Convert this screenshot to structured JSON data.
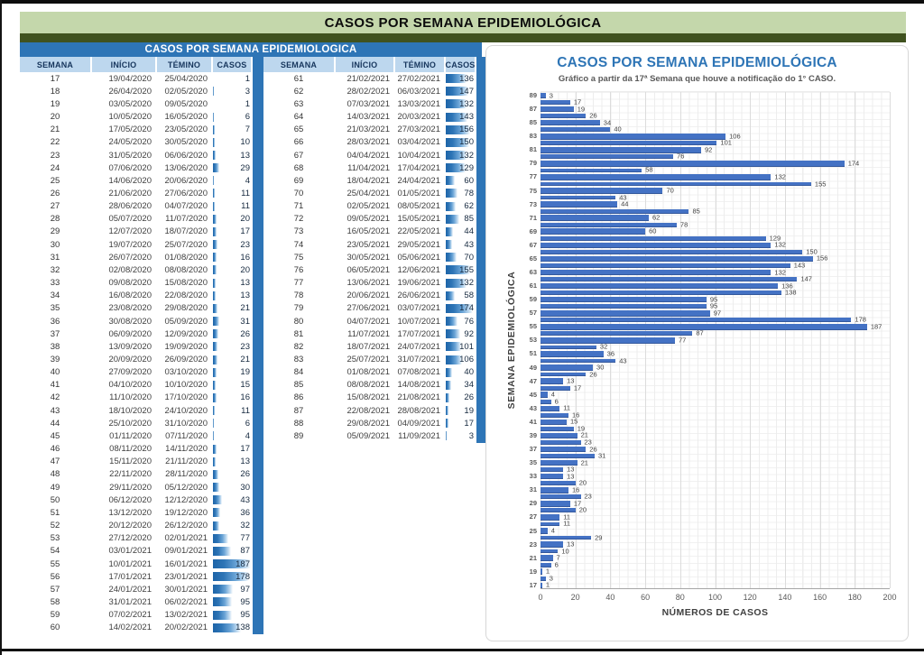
{
  "page": {
    "banner_title": "CASOS POR SEMANA EPIDEMIOLÓGICA"
  },
  "table_section": {
    "title": "CASOS POR SEMANA EPIDEMIOLOGICA",
    "columns": [
      "SEMANA",
      "INÍCIO",
      "TÉMINO",
      "CASOS"
    ],
    "databar_max": 187,
    "tables": [
      {
        "rows": [
          [
            17,
            "19/04/2020",
            "25/04/2020",
            1
          ],
          [
            18,
            "26/04/2020",
            "02/05/2020",
            3
          ],
          [
            19,
            "03/05/2020",
            "09/05/2020",
            1
          ],
          [
            20,
            "10/05/2020",
            "16/05/2020",
            6
          ],
          [
            21,
            "17/05/2020",
            "23/05/2020",
            7
          ],
          [
            22,
            "24/05/2020",
            "30/05/2020",
            10
          ],
          [
            23,
            "31/05/2020",
            "06/06/2020",
            13
          ],
          [
            24,
            "07/06/2020",
            "13/06/2020",
            29
          ],
          [
            25,
            "14/06/2020",
            "20/06/2020",
            4
          ],
          [
            26,
            "21/06/2020",
            "27/06/2020",
            11
          ],
          [
            27,
            "28/06/2020",
            "04/07/2020",
            11
          ],
          [
            28,
            "05/07/2020",
            "11/07/2020",
            20
          ],
          [
            29,
            "12/07/2020",
            "18/07/2020",
            17
          ],
          [
            30,
            "19/07/2020",
            "25/07/2020",
            23
          ],
          [
            31,
            "26/07/2020",
            "01/08/2020",
            16
          ],
          [
            32,
            "02/08/2020",
            "08/08/2020",
            20
          ],
          [
            33,
            "09/08/2020",
            "15/08/2020",
            13
          ],
          [
            34,
            "16/08/2020",
            "22/08/2020",
            13
          ],
          [
            35,
            "23/08/2020",
            "29/08/2020",
            21
          ],
          [
            36,
            "30/08/2020",
            "05/09/2020",
            31
          ],
          [
            37,
            "06/09/2020",
            "12/09/2020",
            26
          ],
          [
            38,
            "13/09/2020",
            "19/09/2020",
            23
          ],
          [
            39,
            "20/09/2020",
            "26/09/2020",
            21
          ],
          [
            40,
            "27/09/2020",
            "03/10/2020",
            19
          ],
          [
            41,
            "04/10/2020",
            "10/10/2020",
            15
          ],
          [
            42,
            "11/10/2020",
            "17/10/2020",
            16
          ],
          [
            43,
            "18/10/2020",
            "24/10/2020",
            11
          ],
          [
            44,
            "25/10/2020",
            "31/10/2020",
            6
          ],
          [
            45,
            "01/11/2020",
            "07/11/2020",
            4
          ],
          [
            46,
            "08/11/2020",
            "14/11/2020",
            17
          ],
          [
            47,
            "15/11/2020",
            "21/11/2020",
            13
          ],
          [
            48,
            "22/11/2020",
            "28/11/2020",
            26
          ],
          [
            49,
            "29/11/2020",
            "05/12/2020",
            30
          ],
          [
            50,
            "06/12/2020",
            "12/12/2020",
            43
          ],
          [
            51,
            "13/12/2020",
            "19/12/2020",
            36
          ],
          [
            52,
            "20/12/2020",
            "26/12/2020",
            32
          ],
          [
            53,
            "27/12/2020",
            "02/01/2021",
            77
          ],
          [
            54,
            "03/01/2021",
            "09/01/2021",
            87
          ],
          [
            55,
            "10/01/2021",
            "16/01/2021",
            187
          ],
          [
            56,
            "17/01/2021",
            "23/01/2021",
            178
          ],
          [
            57,
            "24/01/2021",
            "30/01/2021",
            97
          ],
          [
            58,
            "31/01/2021",
            "06/02/2021",
            95
          ],
          [
            59,
            "07/02/2021",
            "13/02/2021",
            95
          ],
          [
            60,
            "14/02/2021",
            "20/02/2021",
            138
          ]
        ]
      },
      {
        "rows": [
          [
            61,
            "21/02/2021",
            "27/02/2021",
            136
          ],
          [
            62,
            "28/02/2021",
            "06/03/2021",
            147
          ],
          [
            63,
            "07/03/2021",
            "13/03/2021",
            132
          ],
          [
            64,
            "14/03/2021",
            "20/03/2021",
            143
          ],
          [
            65,
            "21/03/2021",
            "27/03/2021",
            156
          ],
          [
            66,
            "28/03/2021",
            "03/04/2021",
            150
          ],
          [
            67,
            "04/04/2021",
            "10/04/2021",
            132
          ],
          [
            68,
            "11/04/2021",
            "17/04/2021",
            129
          ],
          [
            69,
            "18/04/2021",
            "24/04/2021",
            60
          ],
          [
            70,
            "25/04/2021",
            "01/05/2021",
            78
          ],
          [
            71,
            "02/05/2021",
            "08/05/2021",
            62
          ],
          [
            72,
            "09/05/2021",
            "15/05/2021",
            85
          ],
          [
            73,
            "16/05/2021",
            "22/05/2021",
            44
          ],
          [
            74,
            "23/05/2021",
            "29/05/2021",
            43
          ],
          [
            75,
            "30/05/2021",
            "05/06/2021",
            70
          ],
          [
            76,
            "06/05/2021",
            "12/06/2021",
            155
          ],
          [
            77,
            "13/06/2021",
            "19/06/2021",
            132
          ],
          [
            78,
            "20/06/2021",
            "26/06/2021",
            58
          ],
          [
            79,
            "27/06/2021",
            "03/07/2021",
            174
          ],
          [
            80,
            "04/07/2021",
            "10/07/2021",
            76
          ],
          [
            81,
            "11/07/2021",
            "17/07/2021",
            92
          ],
          [
            82,
            "18/07/2021",
            "24/07/2021",
            101
          ],
          [
            83,
            "25/07/2021",
            "31/07/2021",
            106
          ],
          [
            84,
            "01/08/2021",
            "07/08/2021",
            40
          ],
          [
            85,
            "08/08/2021",
            "14/08/2021",
            34
          ],
          [
            86,
            "15/08/2021",
            "21/08/2021",
            26
          ],
          [
            87,
            "22/08/2021",
            "28/08/2021",
            19
          ],
          [
            88,
            "29/08/2021",
            "04/09/2021",
            17
          ],
          [
            89,
            "05/09/2021",
            "11/09/2021",
            3
          ]
        ]
      }
    ]
  },
  "chart": {
    "title": "CASOS POR SEMANA EPIDEMIOLÓGICA",
    "subtitle": "Gráfico a partir da 17ª Semana que houve a notificação do 1° CASO.",
    "xlabel": "NÚMEROS DE CASOS",
    "ylabel": "SEMANA EPIDEMIOLÓGICA"
  },
  "chart_data": {
    "type": "bar",
    "orientation": "horizontal",
    "title": "CASOS POR SEMANA EPIDEMIOLÓGICA",
    "subtitle": "Gráfico a partir da 17ª Semana que houve a notificação do 1° CASO.",
    "xlabel": "NÚMEROS DE CASOS",
    "ylabel": "SEMANA EPIDEMIOLÓGICA",
    "xlim": [
      0,
      200
    ],
    "xticks": [
      0,
      20,
      40,
      60,
      80,
      100,
      120,
      140,
      160,
      180,
      200
    ],
    "grid": true,
    "legend": false,
    "yticks_shown": "odd weeks only, 89 at top to 17 at bottom",
    "data_labels": true,
    "categories": [
      89,
      88,
      87,
      86,
      85,
      84,
      83,
      82,
      81,
      80,
      79,
      78,
      77,
      76,
      75,
      74,
      73,
      72,
      71,
      70,
      69,
      68,
      67,
      66,
      65,
      64,
      63,
      62,
      61,
      60,
      59,
      58,
      57,
      56,
      55,
      54,
      53,
      52,
      51,
      50,
      49,
      48,
      47,
      46,
      45,
      44,
      43,
      42,
      41,
      40,
      39,
      38,
      37,
      36,
      35,
      34,
      33,
      32,
      31,
      30,
      29,
      28,
      27,
      26,
      25,
      24,
      23,
      22,
      21,
      20,
      19,
      18,
      17
    ],
    "values": [
      3,
      17,
      19,
      26,
      34,
      40,
      106,
      101,
      92,
      76,
      174,
      58,
      132,
      155,
      70,
      43,
      44,
      85,
      62,
      78,
      60,
      129,
      132,
      150,
      156,
      143,
      132,
      147,
      136,
      138,
      95,
      95,
      97,
      178,
      187,
      87,
      77,
      32,
      36,
      43,
      30,
      26,
      13,
      17,
      4,
      6,
      11,
      16,
      15,
      19,
      21,
      23,
      26,
      31,
      21,
      13,
      13,
      20,
      16,
      23,
      17,
      20,
      11,
      11,
      4,
      29,
      13,
      10,
      7,
      6,
      1,
      3,
      1
    ]
  },
  "colors": {
    "banner_green": "#c4d7ab",
    "stripe_dark_green": "#40521f",
    "table_title_blue": "#2e75b6",
    "header_cell_blue": "#bdd7ee",
    "databar_blue": "#2e75b6",
    "chart_bar_blue": "#4472c4",
    "chart_title_blue": "#2e75b6",
    "text_dark": "#3f3f3f"
  }
}
